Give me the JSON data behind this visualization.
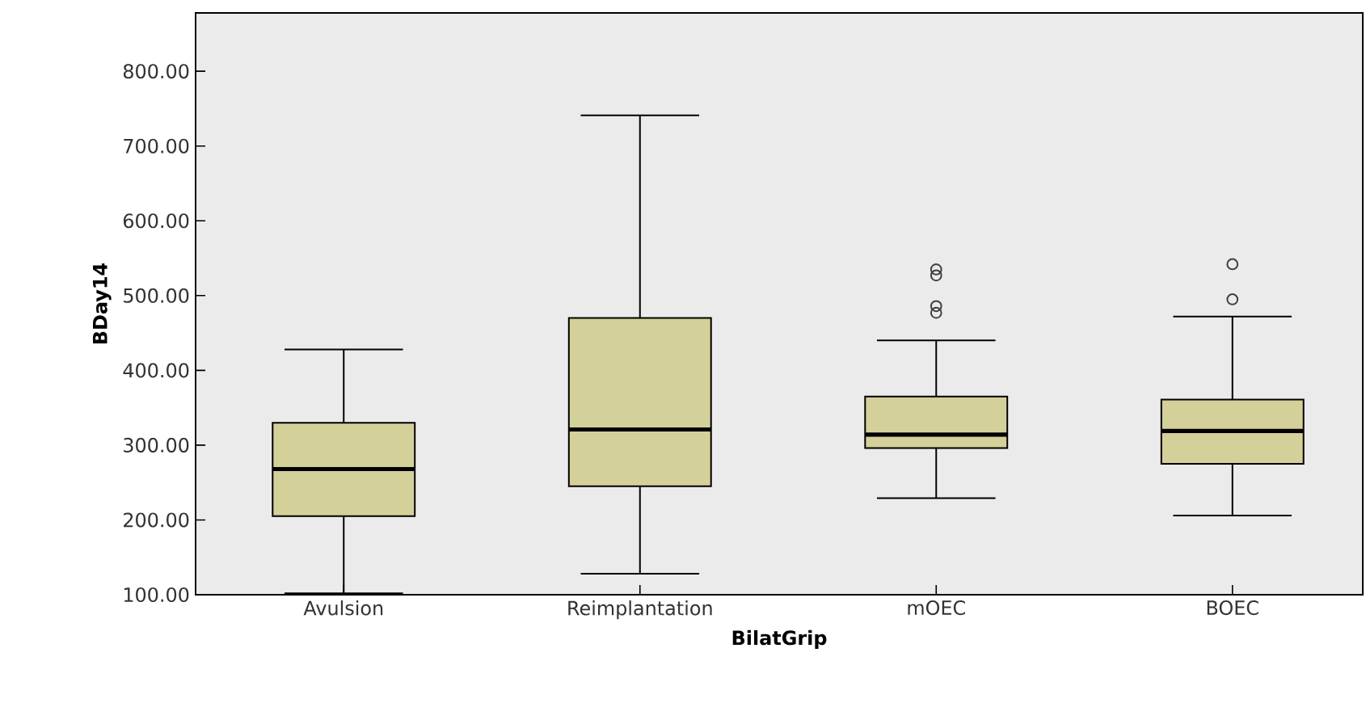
{
  "chart_data": {
    "type": "box",
    "xlabel": "BilatGrip",
    "ylabel": "BDay14",
    "categories": [
      "Avulsion",
      "Reimplantation",
      "mOEC",
      "BOEC"
    ],
    "color": "#d4d09a",
    "boxes": [
      {
        "low": 102,
        "q1": 205,
        "median": 268,
        "q3": 330,
        "high": 428
      },
      {
        "low": 128,
        "q1": 245,
        "median": 321,
        "q3": 470,
        "high": 741
      },
      {
        "low": 229,
        "q1": 296,
        "median": 314,
        "q3": 365,
        "high": 440,
        "outliers": [
          477,
          486,
          527,
          535
        ]
      },
      {
        "low": 206,
        "q1": 275,
        "median": 319,
        "q3": 361,
        "high": 472,
        "outliers": [
          495,
          542
        ]
      }
    ],
    "ylim": [
      100,
      878
    ],
    "yticks": [
      {
        "value": 100,
        "label": "100.00"
      },
      {
        "value": 200,
        "label": "200.00"
      },
      {
        "value": 300,
        "label": "300.00"
      },
      {
        "value": 400,
        "label": "400.00"
      },
      {
        "value": 500,
        "label": "500.00"
      },
      {
        "value": 600,
        "label": "600.00"
      },
      {
        "value": 700,
        "label": "700.00"
      },
      {
        "value": 800,
        "label": "800.00"
      }
    ]
  }
}
